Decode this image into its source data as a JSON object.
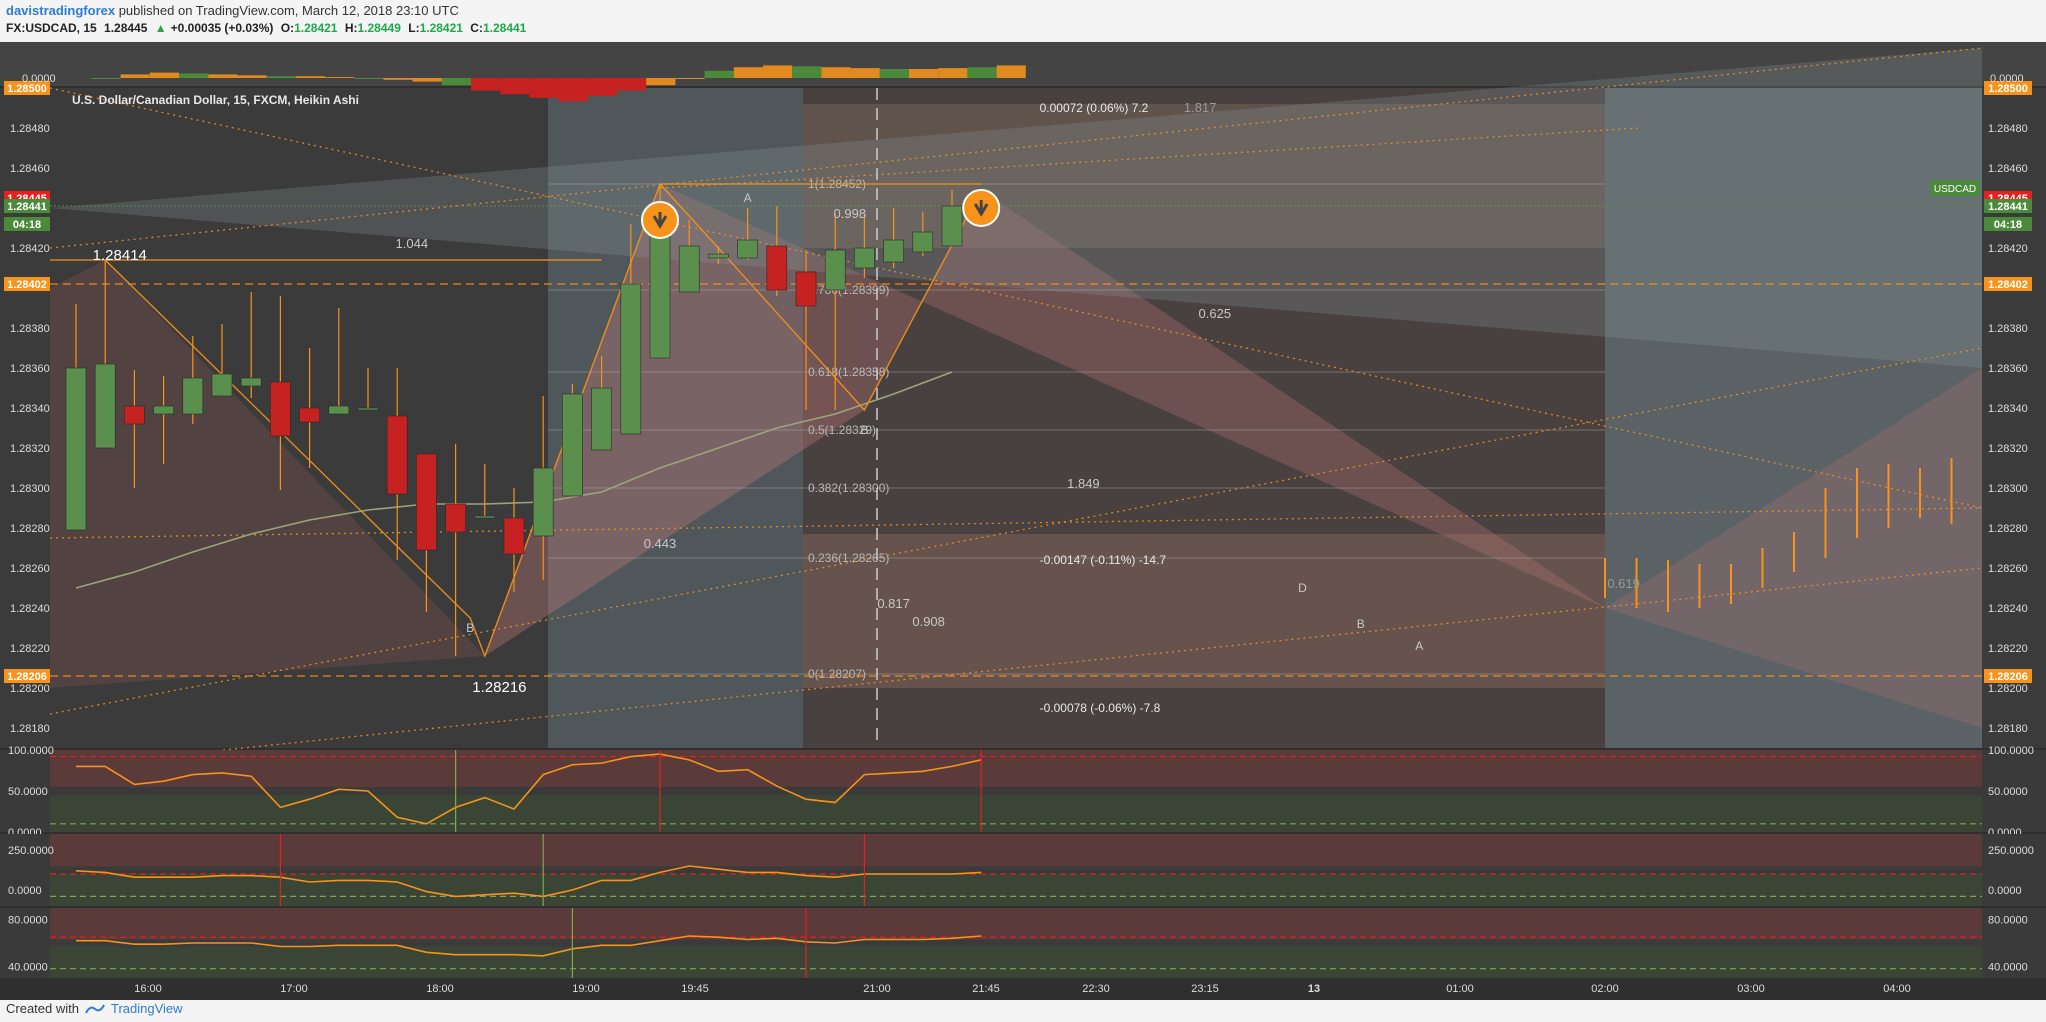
{
  "header": {
    "author": "davistradingforex",
    "published_text": " published on TradingView.com, March 12, 2018 23:10 UTC",
    "symbol": "FX:USDCAD, 15",
    "last": "1.28445",
    "change": "+0.00035 (+0.03%)",
    "o_label": "O:",
    "o_value": "1.28421",
    "h_label": "H:",
    "h_value": "1.28449",
    "l_label": "L:",
    "l_value": "1.28421",
    "c_label": "C:",
    "c_value": "1.28441"
  },
  "footer": {
    "created_with": "Created with",
    "brand": "TradingView"
  },
  "colors": {
    "bg": "#3b3b3b",
    "bull": "#5a8f4e",
    "bear": "#c62222",
    "accent": "#f7931a",
    "axis_text": "#dddddd"
  },
  "chart_data": {
    "type": "candlestick",
    "title": "U.S. Dollar/Canadian Dollar, 15, FXCM, Heikin Ashi",
    "symbol_tag": "USDCAD",
    "ylim": [
      1.2817,
      1.285
    ],
    "yticks": [
      "1.28500",
      "1.28480",
      "1.28460",
      "1.28420",
      "1.28380",
      "1.28360",
      "1.28340",
      "1.28320",
      "1.28300",
      "1.28280",
      "1.28260",
      "1.28240",
      "1.28220",
      "1.28200",
      "1.28180"
    ],
    "price_badges": [
      {
        "price": 1.28445,
        "label": "1.28445",
        "color": "#e32121"
      },
      {
        "price": 1.28441,
        "label": "1.28441",
        "color": "#4a8a3a"
      },
      {
        "price": 1.28432,
        "label": "04:18",
        "color": "#4a8a3a"
      },
      {
        "price": 1.28402,
        "label": "1.28402",
        "color": "#f7931a"
      },
      {
        "price": 1.28206,
        "label": "1.28206",
        "color": "#f7931a"
      },
      {
        "price": 1.285,
        "label": "1.28500",
        "color": "#f7931a"
      }
    ],
    "x_labels": [
      "16:00",
      "17:00",
      "18:00",
      "19:00",
      "19:45",
      "21:00",
      "21:45",
      "22:30",
      "23:15",
      "13",
      "01:00",
      "02:00",
      "03:00",
      "04:00"
    ],
    "candles": [
      {
        "o": 1.28279,
        "h": 1.28392,
        "l": 1.28279,
        "c": 1.2836
      },
      {
        "o": 1.2832,
        "h": 1.28414,
        "l": 1.2832,
        "c": 1.28362
      },
      {
        "o": 1.28341,
        "h": 1.28359,
        "l": 1.283,
        "c": 1.28332
      },
      {
        "o": 1.28337,
        "h": 1.28356,
        "l": 1.28312,
        "c": 1.28341
      },
      {
        "o": 1.28337,
        "h": 1.28376,
        "l": 1.28332,
        "c": 1.28355
      },
      {
        "o": 1.28346,
        "h": 1.28382,
        "l": 1.28346,
        "c": 1.28357
      },
      {
        "o": 1.28351,
        "h": 1.28398,
        "l": 1.28345,
        "c": 1.28355
      },
      {
        "o": 1.28353,
        "h": 1.28396,
        "l": 1.28299,
        "c": 1.28326
      },
      {
        "o": 1.2834,
        "h": 1.2837,
        "l": 1.2831,
        "c": 1.28333
      },
      {
        "o": 1.28337,
        "h": 1.2839,
        "l": 1.28337,
        "c": 1.28341
      },
      {
        "o": 1.28339,
        "h": 1.2836,
        "l": 1.28339,
        "c": 1.2834
      },
      {
        "o": 1.28336,
        "h": 1.2836,
        "l": 1.28264,
        "c": 1.28297
      },
      {
        "o": 1.28317,
        "h": 1.28317,
        "l": 1.28238,
        "c": 1.28269
      },
      {
        "o": 1.28292,
        "h": 1.28322,
        "l": 1.28216,
        "c": 1.28278
      },
      {
        "o": 1.28285,
        "h": 1.28312,
        "l": 1.28285,
        "c": 1.28286
      },
      {
        "o": 1.28285,
        "h": 1.283,
        "l": 1.28248,
        "c": 1.28267
      },
      {
        "o": 1.28276,
        "h": 1.28346,
        "l": 1.28254,
        "c": 1.2831
      },
      {
        "o": 1.28296,
        "h": 1.28352,
        "l": 1.28296,
        "c": 1.28347
      },
      {
        "o": 1.28319,
        "h": 1.28366,
        "l": 1.28319,
        "c": 1.2835
      },
      {
        "o": 1.28327,
        "h": 1.28432,
        "l": 1.28327,
        "c": 1.28402
      },
      {
        "o": 1.28365,
        "h": 1.28452,
        "l": 1.28365,
        "c": 1.28441
      },
      {
        "o": 1.28398,
        "h": 1.28434,
        "l": 1.28398,
        "c": 1.28421
      },
      {
        "o": 1.28415,
        "h": 1.28421,
        "l": 1.28412,
        "c": 1.28417
      },
      {
        "o": 1.28415,
        "h": 1.2844,
        "l": 1.28414,
        "c": 1.28424
      },
      {
        "o": 1.28421,
        "h": 1.28441,
        "l": 1.28396,
        "c": 1.28399
      },
      {
        "o": 1.28408,
        "h": 1.28419,
        "l": 1.28339,
        "c": 1.28391
      },
      {
        "o": 1.28399,
        "h": 1.28437,
        "l": 1.28339,
        "c": 1.28419
      },
      {
        "o": 1.2841,
        "h": 1.28437,
        "l": 1.28405,
        "c": 1.2842
      },
      {
        "o": 1.28413,
        "h": 1.2844,
        "l": 1.2841,
        "c": 1.28424
      },
      {
        "o": 1.28418,
        "h": 1.28438,
        "l": 1.28416,
        "c": 1.28428
      },
      {
        "o": 1.28421,
        "h": 1.28449,
        "l": 1.28421,
        "c": 1.28441
      }
    ],
    "fib_levels": [
      {
        "price": 1.28452,
        "label": "1(1.28452)"
      },
      {
        "price": 1.28399,
        "label": "0.786(1.28399)"
      },
      {
        "price": 1.28358,
        "label": "0.618(1.28358)"
      },
      {
        "price": 1.28329,
        "label": "0.5(1.28329)"
      },
      {
        "price": 1.283,
        "label": "0.382(1.28300)"
      },
      {
        "price": 1.28265,
        "label": "0.236(1.28265)"
      },
      {
        "price": 1.28207,
        "label": "0(1.28207)"
      }
    ],
    "annotations": [
      {
        "text": "1.28414",
        "x": 1.5,
        "price": 1.28414,
        "size": 15,
        "color": "#ffffff"
      },
      {
        "text": "1.28216",
        "x": 14.5,
        "price": 1.28198,
        "size": 15,
        "color": "#ffffff"
      },
      {
        "text": "1.044",
        "x": 11.5,
        "price": 1.2842,
        "size": 13,
        "color": "#c8c8c8"
      },
      {
        "text": "0.998",
        "x": 26.5,
        "price": 1.28435,
        "size": 13,
        "color": "#c8c8c8"
      },
      {
        "text": "1.817",
        "x": 38.5,
        "price": 1.28488,
        "size": 13,
        "color": "#999999"
      },
      {
        "text": "0.625",
        "x": 39,
        "price": 1.28385,
        "size": 13,
        "color": "#c8c8c8"
      },
      {
        "text": "1.849",
        "x": 34.5,
        "price": 1.283,
        "size": 13,
        "color": "#c8c8c8"
      },
      {
        "text": "0.443",
        "x": 20,
        "price": 1.2827,
        "size": 13,
        "color": "#c8c8c8"
      },
      {
        "text": "0.817",
        "x": 28,
        "price": 1.2824,
        "size": 13,
        "color": "#c8c8c8"
      },
      {
        "text": "0.908",
        "x": 29.2,
        "price": 1.28231,
        "size": 13,
        "color": "#c8c8c8"
      },
      {
        "text": "0.619",
        "x": 53,
        "price": 1.2825,
        "size": 13,
        "color": "#999999"
      },
      {
        "text": "0.00072 (0.06%) 7.2",
        "x": 33,
        "price": 1.28488,
        "size": 12,
        "color": "#e8e8e8"
      },
      {
        "text": "-0.00147 (-0.11%) -14.7",
        "x": 33,
        "price": 1.28262,
        "size": 12,
        "color": "#e8e8e8"
      },
      {
        "text": "-0.00078 (-0.06%) -7.8",
        "x": 33,
        "price": 1.28188,
        "size": 12,
        "color": "#e8e8e8"
      },
      {
        "text": "B",
        "x": 13.5,
        "price": 1.28228,
        "size": 12,
        "color": "#c8c8c8"
      },
      {
        "text": "B",
        "x": 27,
        "price": 1.28327,
        "size": 12,
        "color": "#c8c8c8"
      },
      {
        "text": "A",
        "x": 23,
        "price": 1.28443,
        "size": 12,
        "color": "#c8c8c8"
      },
      {
        "text": "D",
        "x": 42,
        "price": 1.28248,
        "size": 12,
        "color": "#c8c8c8"
      },
      {
        "text": "B",
        "x": 44,
        "price": 1.2823,
        "size": 12,
        "color": "#c8c8c8"
      },
      {
        "text": "A",
        "x": 46,
        "price": 1.28219,
        "size": 12,
        "color": "#c8c8c8"
      }
    ],
    "ma_series": [
      {
        "x": 0,
        "p": 1.2825
      },
      {
        "x": 2,
        "p": 1.28258
      },
      {
        "x": 4,
        "p": 1.28268
      },
      {
        "x": 6,
        "p": 1.28277
      },
      {
        "x": 8,
        "p": 1.28284
      },
      {
        "x": 10,
        "p": 1.28289
      },
      {
        "x": 12,
        "p": 1.28292
      },
      {
        "x": 14,
        "p": 1.28292
      },
      {
        "x": 16,
        "p": 1.28293
      },
      {
        "x": 18,
        "p": 1.28298
      },
      {
        "x": 20,
        "p": 1.2831
      },
      {
        "x": 22,
        "p": 1.2832
      },
      {
        "x": 24,
        "p": 1.2833
      },
      {
        "x": 26,
        "p": 1.28337
      },
      {
        "x": 28,
        "p": 1.28347
      },
      {
        "x": 30,
        "p": 1.28358
      }
    ],
    "forecast_candles": [
      {
        "x": 41.5,
        "l": 1.28245,
        "h": 1.28265
      },
      {
        "x": 42.5,
        "l": 1.2824,
        "h": 1.28265
      },
      {
        "x": 43.5,
        "l": 1.28238,
        "h": 1.28264
      },
      {
        "x": 44.5,
        "l": 1.2824,
        "h": 1.28262
      },
      {
        "x": 45.5,
        "l": 1.28242,
        "h": 1.28262
      },
      {
        "x": 46.5,
        "l": 1.2825,
        "h": 1.2827
      },
      {
        "x": 47.5,
        "l": 1.28258,
        "h": 1.28278
      },
      {
        "x": 48.5,
        "l": 1.28265,
        "h": 1.283
      },
      {
        "x": 49.5,
        "l": 1.28275,
        "h": 1.2831
      },
      {
        "x": 50.5,
        "l": 1.2828,
        "h": 1.28312
      },
      {
        "x": 51.5,
        "l": 1.28285,
        "h": 1.2831
      },
      {
        "x": 52.5,
        "l": 1.28282,
        "h": 1.28315
      }
    ],
    "osc1": {
      "yticks": [
        "100.0000",
        "50.0000",
        "0.0000"
      ],
      "values": [
        80,
        80,
        58,
        62,
        70,
        72,
        68,
        30,
        40,
        52,
        50,
        18,
        10,
        30,
        42,
        28,
        70,
        82,
        84,
        92,
        95,
        88,
        74,
        76,
        56,
        40,
        36,
        70,
        72,
        74,
        80,
        88
      ]
    },
    "osc2": {
      "yticks": [
        "250.0000",
        "0.0000"
      ],
      "values": [
        120,
        110,
        80,
        80,
        80,
        90,
        90,
        80,
        50,
        60,
        60,
        50,
        -10,
        -40,
        -30,
        -20,
        -40,
        0,
        60,
        60,
        110,
        150,
        130,
        110,
        110,
        90,
        80,
        100,
        100,
        100,
        100,
        110
      ]
    },
    "osc3": {
      "yticks": [
        "80.0000",
        "40.0000"
      ],
      "values": [
        62,
        62,
        59,
        59,
        60,
        60,
        60,
        57,
        57,
        58,
        58,
        58,
        52,
        50,
        50,
        50,
        49,
        55,
        58,
        58,
        62,
        66,
        65,
        63,
        64,
        61,
        60,
        63,
        63,
        63,
        64,
        66
      ]
    },
    "top_strip": {
      "ytick": "0.0000"
    }
  }
}
